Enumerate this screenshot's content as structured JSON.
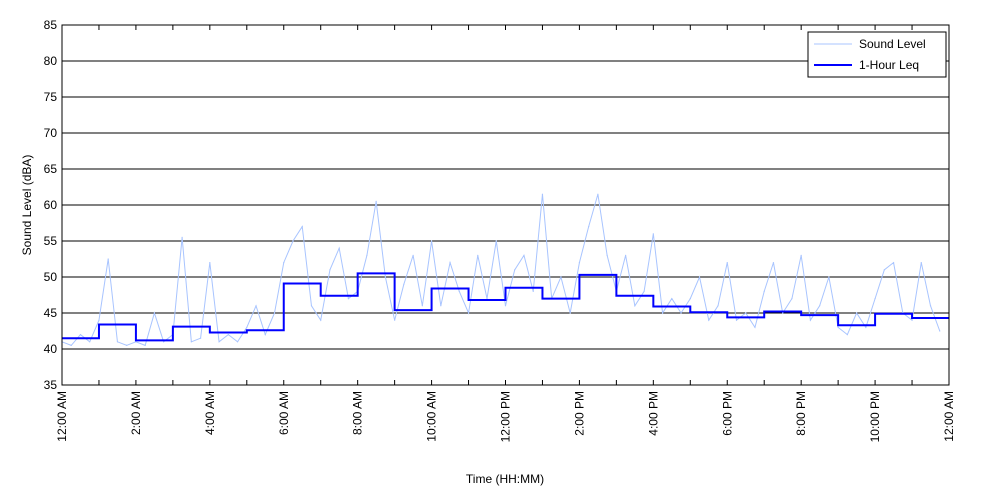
{
  "chart_data": {
    "type": "line",
    "title": "",
    "xlabel": "Time (HH:MM)",
    "ylabel": "Sound Level (dBA)",
    "ylim": [
      35,
      85
    ],
    "yticks": [
      "35",
      "40",
      "45",
      "50",
      "55",
      "60",
      "65",
      "70",
      "75",
      "80",
      "85"
    ],
    "xlim_hours": [
      0,
      24
    ],
    "xtick_labels": [
      "12:00 AM",
      "2:00 AM",
      "4:00 AM",
      "6:00 AM",
      "8:00 AM",
      "10:00 AM",
      "12:00 PM",
      "2:00 PM",
      "4:00 PM",
      "6:00 PM",
      "8:00 PM",
      "10:00 PM",
      "12:00 AM"
    ],
    "grid": "horizontal",
    "legend_position": "top-right",
    "series": [
      {
        "name": "Sound Level",
        "color": "#a8c4ff",
        "x_interval_minutes": 15,
        "values": [
          41,
          40.5,
          42,
          41,
          44,
          52.5,
          41,
          40.5,
          41,
          40.5,
          45,
          41,
          42,
          55.5,
          41,
          41.5,
          52,
          41,
          42,
          41,
          43,
          46,
          42,
          45,
          52,
          55,
          57,
          46,
          44,
          51,
          54,
          47,
          48,
          53,
          60.5,
          50,
          44,
          49,
          53,
          46,
          55,
          46,
          52,
          48,
          45,
          53,
          47,
          55,
          46,
          51,
          53,
          48,
          61.5,
          47,
          50,
          45,
          52,
          57,
          61.5,
          53,
          48,
          53,
          46,
          48,
          56,
          45,
          47,
          45,
          47,
          50,
          44,
          46,
          52,
          44,
          45,
          43,
          48,
          52,
          45,
          47,
          53,
          44,
          46,
          50,
          43,
          42,
          45,
          43,
          47,
          51,
          52,
          45,
          44,
          52,
          46,
          42.5
        ]
      },
      {
        "name": "1-Hour Leq",
        "color": "#0000ff",
        "x_interval_minutes": 60,
        "values": [
          41.5,
          43.4,
          41.2,
          43.1,
          42.3,
          42.6,
          49.1,
          47.4,
          50.5,
          45.4,
          48.4,
          46.8,
          48.5,
          47.0,
          50.3,
          47.4,
          45.9,
          45.1,
          44.4,
          45.2,
          44.7,
          43.3,
          44.9,
          44.3
        ]
      }
    ]
  }
}
